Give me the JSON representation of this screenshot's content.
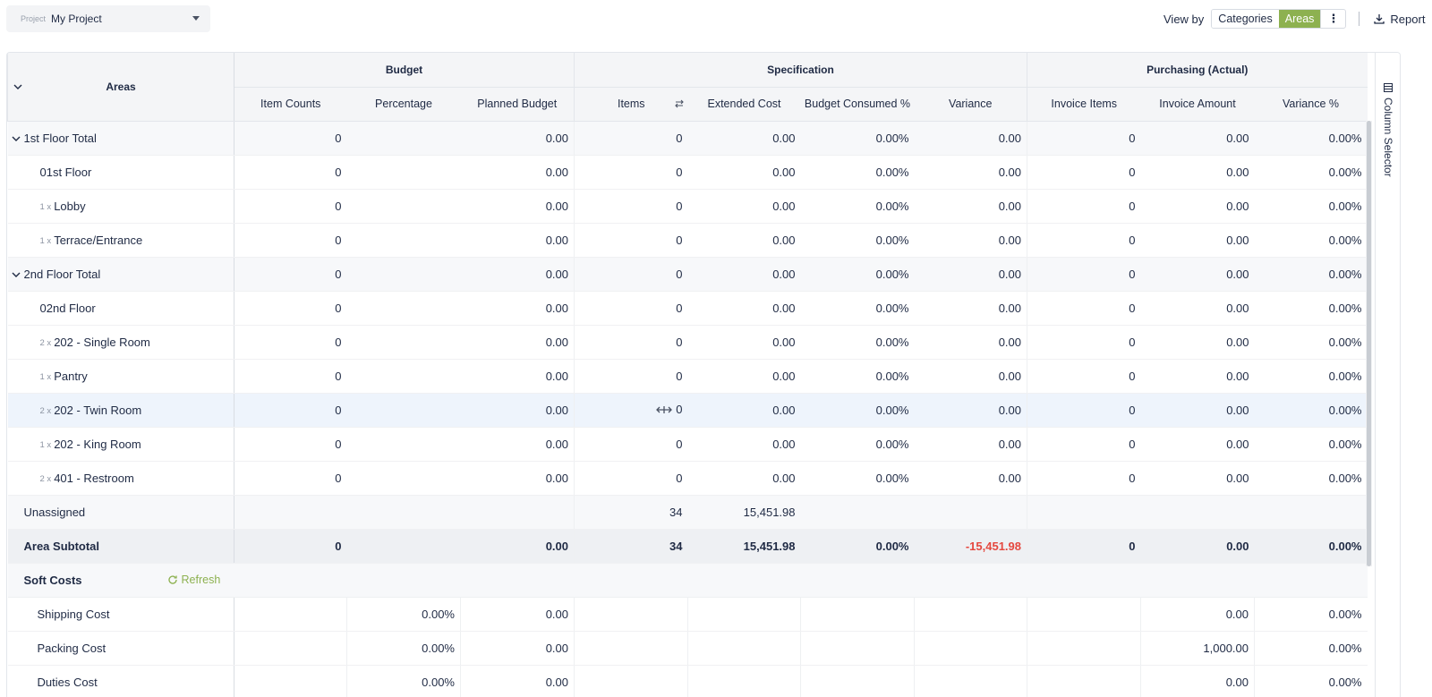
{
  "project": {
    "label": "Project",
    "value": "My Project"
  },
  "viewby": {
    "label": "View by",
    "options": [
      "Categories",
      "Areas"
    ],
    "active": "Areas",
    "more": "⋮"
  },
  "report": {
    "label": "Report"
  },
  "side_panel": {
    "label": "Column Selector"
  },
  "table": {
    "areas_header": "Areas",
    "groups": {
      "budget": "Budget",
      "specification": "Specification",
      "purchasing": "Purchasing (Actual)"
    },
    "columns": [
      "Item Counts",
      "Percentage",
      "Planned Budget",
      "Items",
      "Extended Cost",
      "Budget Consumed %",
      "Variance",
      "Invoice Items",
      "Invoice Amount",
      "Variance %"
    ],
    "rows": [
      {
        "name": "1st Floor Total",
        "mult": "",
        "cells": [
          "0",
          "",
          "0.00",
          "0",
          "0.00",
          "0.00%",
          "0.00",
          "0",
          "0.00",
          "0.00%"
        ]
      },
      {
        "name": "01st Floor",
        "mult": "",
        "cells": [
          "0",
          "",
          "0.00",
          "0",
          "0.00",
          "0.00%",
          "0.00",
          "0",
          "0.00",
          "0.00%"
        ]
      },
      {
        "name": "Lobby",
        "mult": "1 x",
        "cells": [
          "0",
          "",
          "0.00",
          "0",
          "0.00",
          "0.00%",
          "0.00",
          "0",
          "0.00",
          "0.00%"
        ]
      },
      {
        "name": "Terrace/Entrance",
        "mult": "1 x",
        "cells": [
          "0",
          "",
          "0.00",
          "0",
          "0.00",
          "0.00%",
          "0.00",
          "0",
          "0.00",
          "0.00%"
        ]
      },
      {
        "name": "2nd Floor Total",
        "mult": "",
        "cells": [
          "0",
          "",
          "0.00",
          "0",
          "0.00",
          "0.00%",
          "0.00",
          "0",
          "0.00",
          "0.00%"
        ]
      },
      {
        "name": "02nd Floor",
        "mult": "",
        "cells": [
          "0",
          "",
          "0.00",
          "0",
          "0.00",
          "0.00%",
          "0.00",
          "0",
          "0.00",
          "0.00%"
        ]
      },
      {
        "name": "202 - Single Room",
        "mult": "2 x",
        "cells": [
          "0",
          "",
          "0.00",
          "0",
          "0.00",
          "0.00%",
          "0.00",
          "0",
          "0.00",
          "0.00%"
        ]
      },
      {
        "name": "Pantry",
        "mult": "1 x",
        "cells": [
          "0",
          "",
          "0.00",
          "0",
          "0.00",
          "0.00%",
          "0.00",
          "0",
          "0.00",
          "0.00%"
        ]
      },
      {
        "name": "202 - Twin Room",
        "mult": "2 x",
        "cells": [
          "0",
          "",
          "0.00",
          "0",
          "0.00",
          "0.00%",
          "0.00",
          "0",
          "0.00",
          "0.00%"
        ]
      },
      {
        "name": "202 - King Room",
        "mult": "1 x",
        "cells": [
          "0",
          "",
          "0.00",
          "0",
          "0.00",
          "0.00%",
          "0.00",
          "0",
          "0.00",
          "0.00%"
        ]
      },
      {
        "name": "401 - Restroom",
        "mult": "2 x",
        "cells": [
          "0",
          "",
          "0.00",
          "0",
          "0.00",
          "0.00%",
          "0.00",
          "0",
          "0.00",
          "0.00%"
        ]
      },
      {
        "name": "Unassigned",
        "mult": "",
        "cells": [
          "",
          "",
          "",
          "34",
          "15,451.98",
          "",
          "",
          "",
          "",
          ""
        ]
      },
      {
        "name": "Area Subtotal",
        "mult": "",
        "cells": [
          "0",
          "",
          "0.00",
          "34",
          "15,451.98",
          "0.00%",
          "-15,451.98",
          "0",
          "0.00",
          "0.00%"
        ]
      }
    ],
    "soft_costs": {
      "title": "Soft Costs",
      "refresh": "Refresh",
      "rows": [
        {
          "name": "Shipping Cost",
          "cells": [
            "",
            "0.00%",
            "0.00",
            "",
            "",
            "",
            "",
            "",
            "0.00",
            "0.00%"
          ]
        },
        {
          "name": "Packing Cost",
          "cells": [
            "",
            "0.00%",
            "0.00",
            "",
            "",
            "",
            "",
            "",
            "1,000.00",
            "0.00%"
          ]
        },
        {
          "name": "Duties Cost",
          "cells": [
            "",
            "0.00%",
            "0.00",
            "",
            "",
            "",
            "",
            "",
            "0.00",
            "0.00%"
          ]
        }
      ]
    }
  },
  "colors": {
    "accent": "#8db150",
    "negative": "#e5483f",
    "highlight_row": "#eef4fc"
  }
}
